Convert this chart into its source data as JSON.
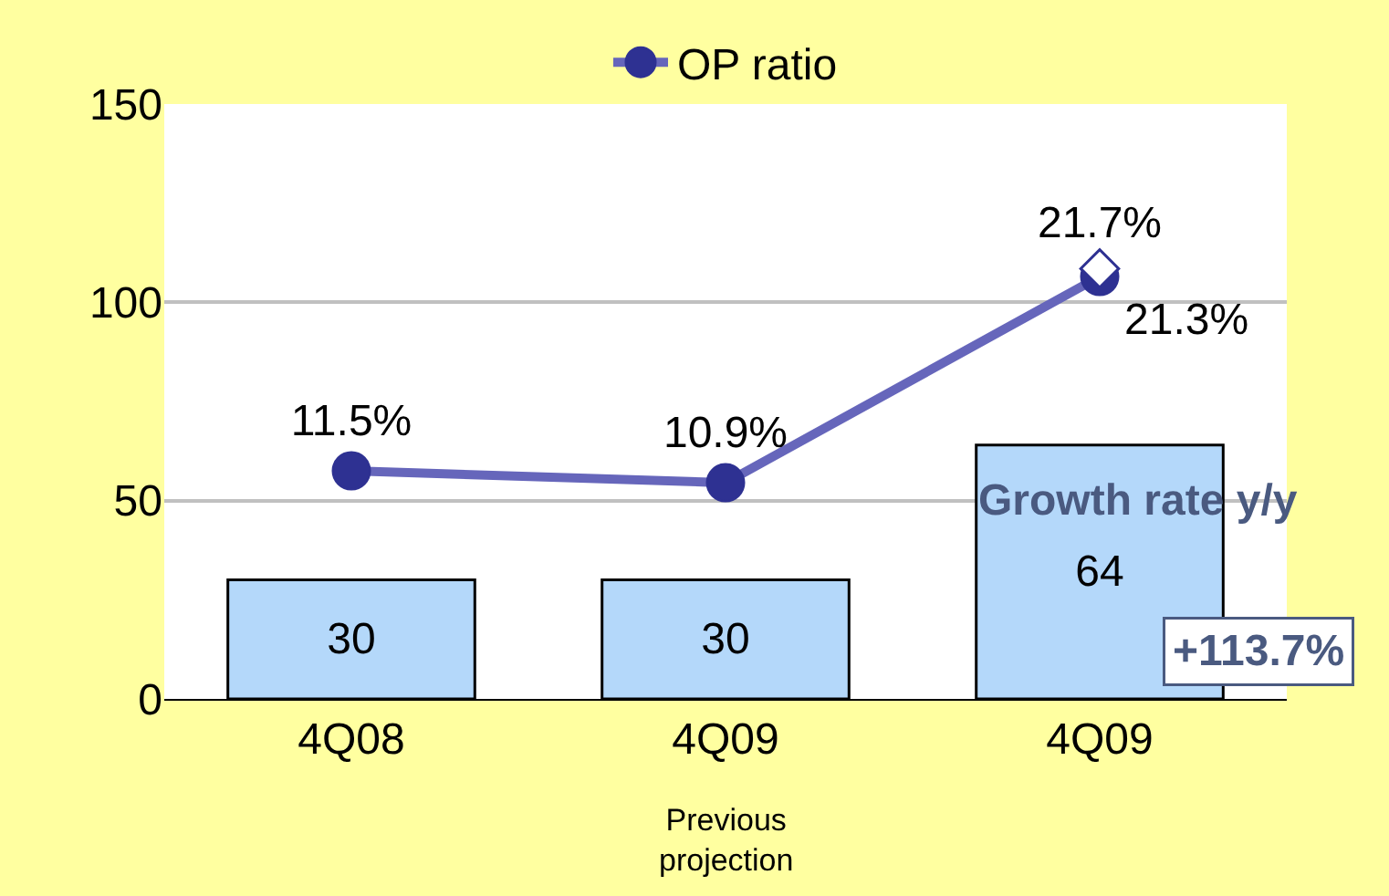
{
  "chart_data": {
    "type": "bar",
    "categories": [
      "4Q08",
      "4Q09",
      "4Q09"
    ],
    "ylim": [
      0,
      150
    ],
    "yticks": [
      0,
      50,
      100,
      150
    ],
    "y2lim": [
      0,
      30
    ],
    "grid": "y",
    "legend": "top",
    "tick_labels": "x,y",
    "series": [
      {
        "color": "#b4d8fa",
        "values": [
          30,
          30,
          64
        ],
        "data_labels": true
      },
      {
        "type": "line",
        "name": "OP ratio",
        "color": "#2e3192",
        "axis": "y2",
        "marker": "circle",
        "values": [
          11.5,
          10.9,
          21.3
        ],
        "value_labels": [
          "11.5%",
          "10.9%",
          "21.3%"
        ]
      },
      {
        "type": "scatter",
        "color": "#ffffff",
        "axis": "y2",
        "marker": "diamond",
        "values": [
          null,
          null,
          21.7
        ],
        "value_labels": [
          null,
          null,
          "21.7%"
        ]
      }
    ],
    "annotations": [
      "Growth rate y/y",
      "+113.7%",
      "Previous projection"
    ]
  }
}
